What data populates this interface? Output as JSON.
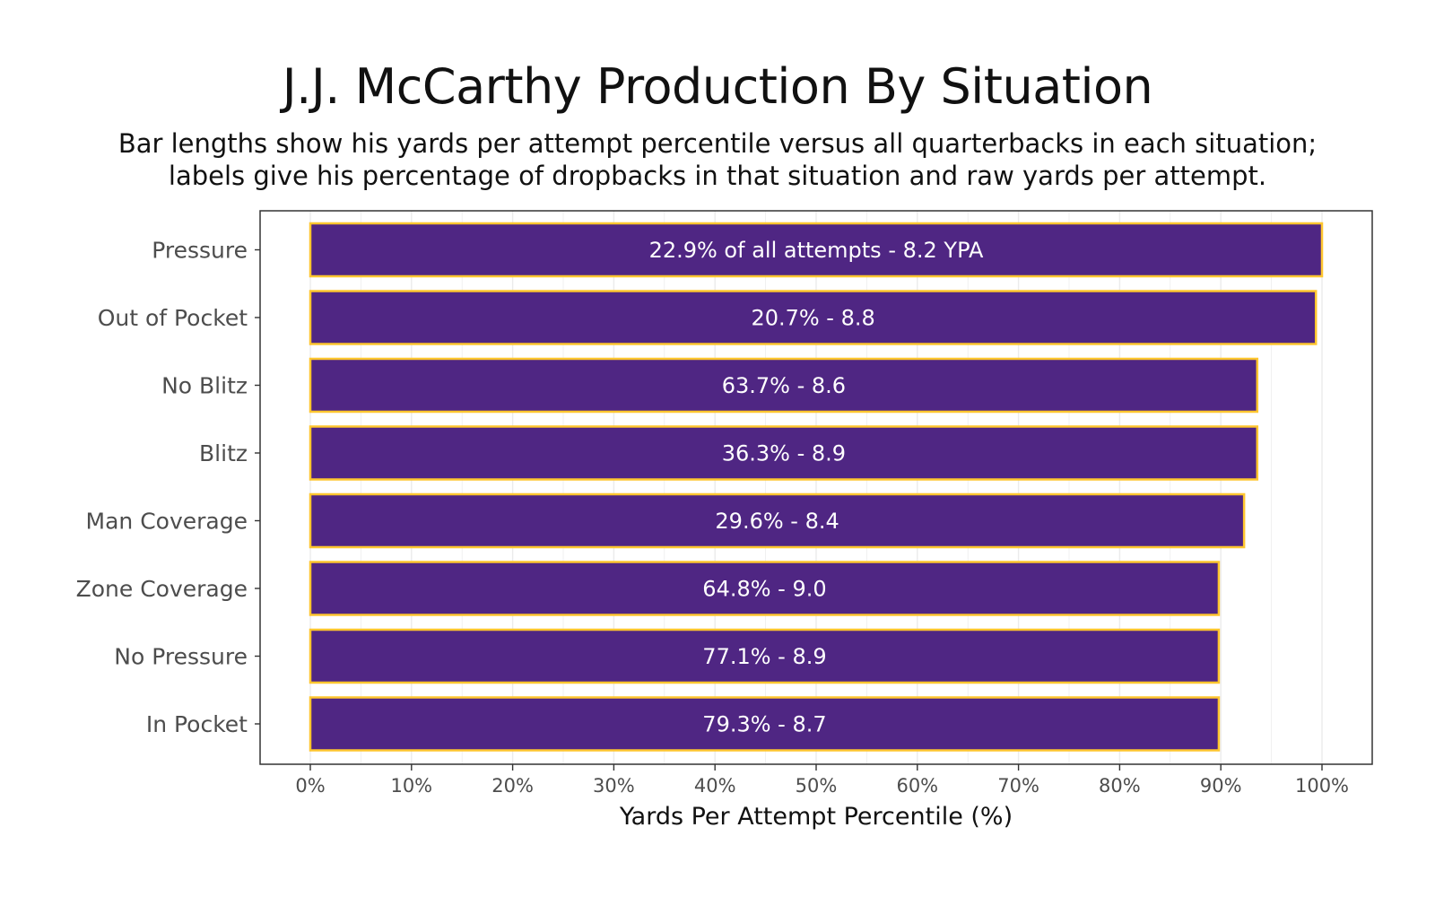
{
  "chart_data": {
    "type": "bar",
    "orientation": "horizontal",
    "title": "J.J. McCarthy Production By Situation",
    "subtitle_lines": [
      "Bar lengths show his yards per attempt percentile versus all quarterbacks in each situation;",
      "labels give his percentage of dropbacks in that situation and raw yards per attempt."
    ],
    "xlabel": "Yards Per Attempt Percentile (%)",
    "ylabel": "",
    "xlim": [
      0,
      100
    ],
    "x_ticks": [
      0,
      10,
      20,
      30,
      40,
      50,
      60,
      70,
      80,
      90,
      100
    ],
    "x_tick_labels": [
      "0%",
      "10%",
      "20%",
      "30%",
      "40%",
      "50%",
      "60%",
      "70%",
      "80%",
      "90%",
      "100%"
    ],
    "grid": true,
    "categories": [
      "Pressure",
      "Out of Pocket",
      "No Blitz",
      "Blitz",
      "Man Coverage",
      "Zone Coverage",
      "No Pressure",
      "In Pocket"
    ],
    "values": [
      100,
      99.4,
      93.6,
      93.6,
      92.3,
      89.8,
      89.8,
      89.8
    ],
    "bar_labels": [
      "22.9% of all attempts - 8.2 YPA",
      "20.7% - 8.8",
      "63.7% - 8.6",
      "36.3% - 8.9",
      "29.6% - 8.4",
      "64.8% - 9.0",
      "77.1% - 8.9",
      "79.3% - 8.7"
    ],
    "colors": {
      "bar_fill": "#4F2683",
      "bar_outline": "#FFC62F",
      "bar_label": "#FFFFFF",
      "grid": "#EBEBEB",
      "panel_border": "#333333"
    }
  }
}
